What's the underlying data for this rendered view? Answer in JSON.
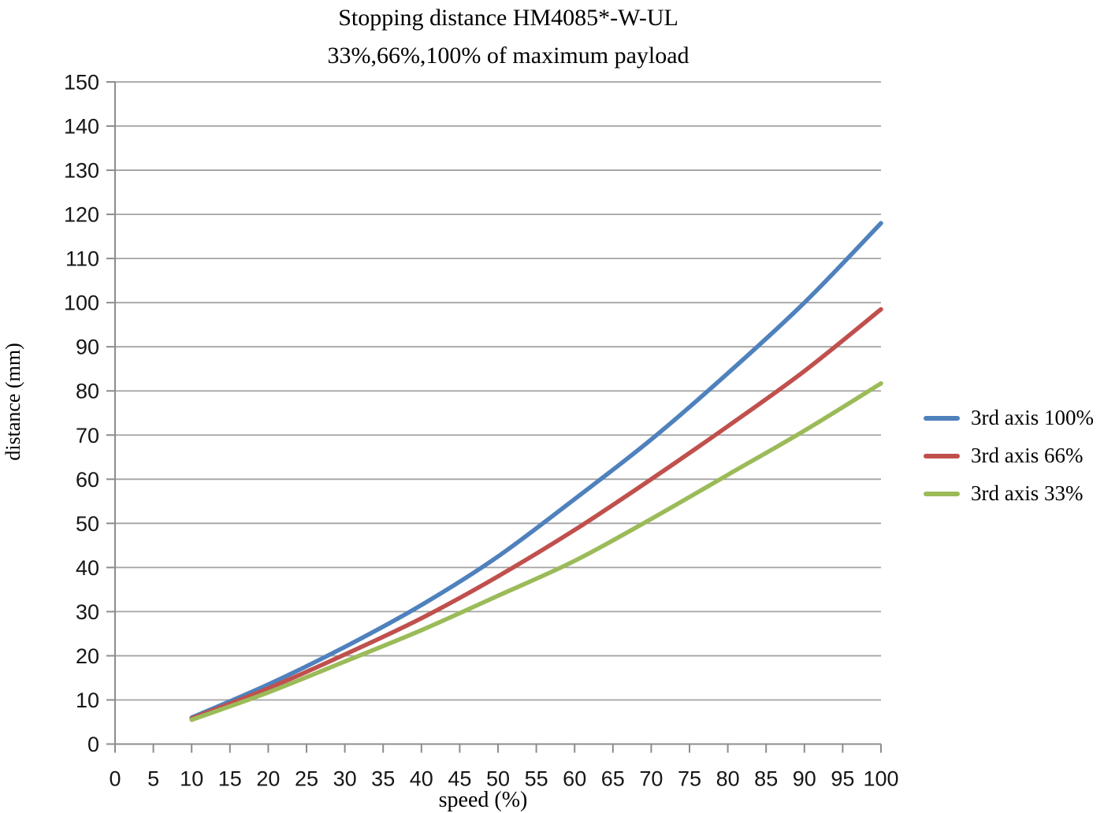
{
  "chart": {
    "title": "Stopping distance HM4085*-W-UL",
    "subtitle": "33%,66%,100% of maximum payload"
  },
  "chart_data": {
    "type": "line",
    "title": "Stopping distance HM4085*-W-UL",
    "subtitle": "33%,66%,100% of maximum payload",
    "xlabel": "speed (%)",
    "ylabel": "distance (mm)",
    "xlim": [
      0,
      100
    ],
    "ylim": [
      0,
      150
    ],
    "x_ticks": [
      0,
      5,
      10,
      15,
      20,
      25,
      30,
      35,
      40,
      45,
      50,
      55,
      60,
      65,
      70,
      75,
      80,
      85,
      90,
      95,
      100
    ],
    "y_ticks": [
      0,
      10,
      20,
      30,
      40,
      50,
      60,
      70,
      80,
      90,
      100,
      110,
      120,
      130,
      140,
      150
    ],
    "grid": "horizontal",
    "grid_color": "#a3a3a3",
    "axis_color": "#8c8c8c",
    "legend_position": "right",
    "x": [
      10,
      20,
      30,
      40,
      50,
      60,
      70,
      80,
      90,
      100
    ],
    "series": [
      {
        "name": "3rd axis 100%",
        "color": "#4F81BD",
        "values": [
          6,
          13.5,
          22,
          31.5,
          42.5,
          55.5,
          69,
          84,
          100,
          118
        ]
      },
      {
        "name": "3rd axis 66%",
        "color": "#C0504D",
        "values": [
          5.8,
          12.6,
          20.3,
          28.5,
          38,
          48.5,
          60,
          72,
          84.5,
          98.5
        ]
      },
      {
        "name": "3rd axis 33%",
        "color": "#9BBB59",
        "values": [
          5.5,
          11.7,
          18.7,
          25.8,
          33.6,
          41.5,
          51,
          61,
          71,
          81.7
        ]
      }
    ]
  }
}
